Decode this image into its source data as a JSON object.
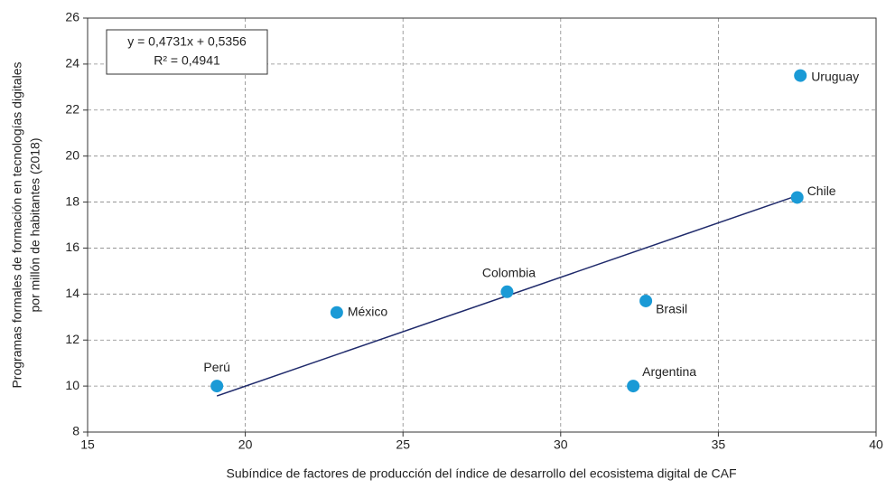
{
  "chart_data": {
    "type": "scatter",
    "x_label": "Subíndice de factores de producción del índice de desarrollo del ecosistema digital de CAF",
    "y_label": [
      "Programas formales de formación en tecnologías digitales",
      "por millón de habitantes (2018)"
    ],
    "annotation": [
      "y = 0,4731x + 0,5356",
      "R² = 0,4941"
    ],
    "categories": [
      "Perú",
      "México",
      "Colombia",
      "Argentina",
      "Brasil",
      "Chile",
      "Uruguay"
    ],
    "x": [
      19.1,
      22.9,
      28.3,
      32.3,
      32.7,
      37.5,
      37.6
    ],
    "values": [
      10.0,
      13.2,
      14.1,
      10.0,
      13.7,
      18.2,
      23.5
    ],
    "color": "#1a9ad6",
    "trendline": {
      "x": [
        19.1,
        37.5
      ],
      "y": [
        9.57,
        18.28
      ],
      "color": "#1f2a6b"
    },
    "xlim": [
      15,
      40
    ],
    "xticks": [
      15,
      20,
      25,
      30,
      35,
      40
    ],
    "ylim": [
      8,
      26
    ],
    "yticks": [
      8,
      10,
      12,
      14,
      16,
      18,
      20,
      22,
      24,
      26
    ],
    "grid": true
  }
}
